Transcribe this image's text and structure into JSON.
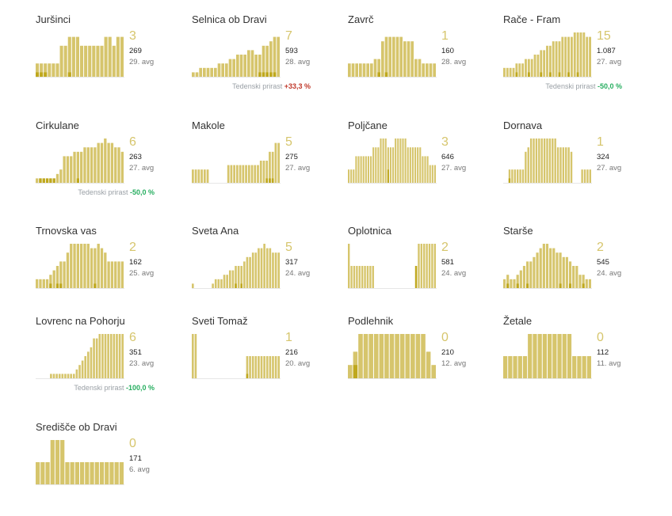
{
  "colors": {
    "bar": "#d6c56c",
    "bar_highlight": "#bfa81e",
    "axis": "#e6e6e6",
    "positive": "#c0392b",
    "negative": "#27ae60"
  },
  "growth_label": "Tedenski prirast",
  "municipalities": [
    {
      "name": "Juršinci",
      "new": "3",
      "total": "269",
      "avg": "29. avg",
      "growth": null,
      "chart_data": {
        "type": "bar",
        "values": [
          3,
          3,
          3,
          3,
          3,
          3,
          7,
          7,
          9,
          9,
          9,
          7,
          7,
          7,
          7,
          7,
          7,
          9,
          9,
          7,
          9,
          9
        ],
        "highlight": [
          1,
          1,
          1,
          0,
          0,
          0,
          0,
          0,
          1,
          0,
          0,
          0,
          0,
          0,
          0,
          0,
          0,
          0,
          0,
          0,
          0,
          0
        ]
      }
    },
    {
      "name": "Selnica ob Dravi",
      "new": "7",
      "total": "593",
      "avg": "28. avg",
      "growth": "+33,3 %",
      "growth_dir": "pos",
      "chart_data": {
        "type": "bar",
        "values": [
          1,
          1,
          2,
          2,
          2,
          2,
          2,
          3,
          3,
          3,
          4,
          4,
          5,
          5,
          5,
          6,
          6,
          5,
          5,
          7,
          7,
          8,
          9,
          9
        ],
        "highlight": [
          0,
          0,
          0,
          0,
          0,
          0,
          0,
          0,
          0,
          0,
          0,
          0,
          0,
          0,
          0,
          0,
          0,
          0,
          1,
          1,
          1,
          1,
          1,
          0
        ]
      }
    },
    {
      "name": "Zavrč",
      "new": "1",
      "total": "160",
      "avg": "28. avg",
      "growth": null,
      "chart_data": {
        "type": "bar",
        "values": [
          3,
          3,
          3,
          3,
          3,
          3,
          3,
          4,
          4,
          8,
          9,
          9,
          9,
          9,
          9,
          8,
          8,
          8,
          4,
          4,
          3,
          3,
          3,
          3
        ],
        "highlight": [
          0,
          0,
          0,
          0,
          0,
          0,
          0,
          0,
          1,
          0,
          1,
          0,
          0,
          0,
          0,
          0,
          0,
          0,
          0,
          0,
          0,
          0,
          0,
          0
        ]
      }
    },
    {
      "name": "Rače - Fram",
      "new": "15",
      "total": "1.087",
      "avg": "27. avg",
      "growth": "-50,0 %",
      "growth_dir": "neg",
      "chart_data": {
        "type": "bar",
        "values": [
          2,
          2,
          2,
          2,
          3,
          3,
          3,
          4,
          4,
          4,
          5,
          5,
          6,
          6,
          7,
          7,
          8,
          8,
          8,
          9,
          9,
          9,
          9,
          10,
          10,
          10,
          10,
          9,
          9
        ],
        "highlight": [
          0,
          0,
          0,
          0,
          1,
          0,
          0,
          0,
          1,
          0,
          0,
          0,
          1,
          0,
          0,
          1,
          0,
          0,
          1,
          0,
          0,
          1,
          0,
          0,
          1,
          0,
          0,
          0,
          0
        ]
      }
    },
    {
      "name": "Cirkulane",
      "new": "6",
      "total": "263",
      "avg": "27. avg",
      "growth": "-50,0 %",
      "growth_dir": "neg",
      "chart_data": {
        "type": "bar",
        "values": [
          1,
          1,
          1,
          1,
          1,
          1,
          2,
          3,
          6,
          6,
          6,
          7,
          7,
          7,
          8,
          8,
          8,
          8,
          9,
          9,
          10,
          9,
          9,
          8,
          8,
          7
        ],
        "highlight": [
          0,
          1,
          1,
          1,
          1,
          1,
          0,
          0,
          0,
          0,
          0,
          0,
          1,
          0,
          0,
          0,
          0,
          0,
          0,
          0,
          0,
          0,
          0,
          0,
          0,
          0
        ]
      }
    },
    {
      "name": "Makole",
      "new": "5",
      "total": "275",
      "avg": "27. avg",
      "growth": null,
      "chart_data": {
        "type": "bar",
        "values": [
          3,
          3,
          3,
          3,
          3,
          3,
          0,
          0,
          0,
          0,
          0,
          0,
          4,
          4,
          4,
          4,
          4,
          4,
          4,
          4,
          4,
          4,
          4,
          5,
          5,
          5,
          7,
          7,
          9,
          9
        ],
        "highlight": [
          0,
          0,
          0,
          0,
          0,
          0,
          0,
          0,
          0,
          0,
          0,
          0,
          0,
          0,
          0,
          0,
          0,
          0,
          0,
          0,
          0,
          0,
          0,
          0,
          0,
          1,
          1,
          1,
          0,
          0
        ]
      }
    },
    {
      "name": "Poljčane",
      "new": "3",
      "total": "646",
      "avg": "27. avg",
      "growth": null,
      "chart_data": {
        "type": "bar",
        "values": [
          3,
          3,
          3,
          6,
          6,
          6,
          6,
          6,
          6,
          6,
          8,
          8,
          8,
          10,
          10,
          10,
          8,
          8,
          8,
          10,
          10,
          10,
          10,
          10,
          8,
          8,
          8,
          8,
          8,
          8,
          6,
          6,
          6,
          4,
          4,
          4
        ],
        "highlight": [
          0,
          0,
          0,
          0,
          0,
          0,
          0,
          0,
          0,
          0,
          0,
          0,
          0,
          0,
          0,
          0,
          3,
          0,
          0,
          0,
          0,
          0,
          0,
          0,
          0,
          0,
          0,
          0,
          0,
          0,
          0,
          0,
          0,
          0,
          0,
          0
        ]
      }
    },
    {
      "name": "Dornava",
      "new": "1",
      "total": "324",
      "avg": "27. avg",
      "growth": null,
      "chart_data": {
        "type": "bar",
        "values": [
          0,
          0,
          3,
          3,
          3,
          3,
          3,
          3,
          7,
          8,
          10,
          10,
          10,
          10,
          10,
          10,
          10,
          10,
          10,
          10,
          8,
          8,
          8,
          8,
          8,
          7,
          0,
          0,
          0,
          3,
          3,
          3,
          3
        ],
        "highlight": [
          0,
          0,
          1,
          0,
          0,
          0,
          0,
          0,
          0,
          0,
          0,
          0,
          0,
          0,
          0,
          0,
          0,
          0,
          0,
          0,
          0,
          0,
          0,
          0,
          0,
          0,
          0,
          0,
          0,
          0,
          0,
          0,
          0
        ]
      }
    },
    {
      "name": "Trnovska vas",
      "new": "2",
      "total": "162",
      "avg": "25. avg",
      "growth": null,
      "chart_data": {
        "type": "bar",
        "values": [
          2,
          2,
          2,
          2,
          3,
          4,
          5,
          6,
          6,
          8,
          10,
          10,
          10,
          10,
          10,
          10,
          9,
          9,
          10,
          9,
          8,
          6,
          6,
          6,
          6,
          6
        ],
        "highlight": [
          0,
          0,
          0,
          0,
          1,
          0,
          1,
          1,
          0,
          0,
          0,
          0,
          0,
          0,
          0,
          0,
          0,
          1,
          0,
          0,
          0,
          0,
          0,
          0,
          0,
          0
        ]
      }
    },
    {
      "name": "Sveta Ana",
      "new": "5",
      "total": "317",
      "avg": "24. avg",
      "growth": null,
      "chart_data": {
        "type": "bar",
        "values": [
          1,
          0,
          0,
          0,
          0,
          0,
          0,
          1,
          2,
          2,
          2,
          3,
          3,
          4,
          4,
          5,
          5,
          5,
          6,
          7,
          7,
          8,
          8,
          9,
          9,
          10,
          9,
          9,
          8,
          8,
          8
        ],
        "highlight": [
          0,
          0,
          0,
          0,
          0,
          0,
          0,
          0,
          0,
          0,
          0,
          0,
          0,
          0,
          0,
          1,
          0,
          1,
          0,
          0,
          0,
          0,
          0,
          0,
          0,
          0,
          0,
          0,
          0,
          0,
          0
        ]
      }
    },
    {
      "name": "Oplotnica",
      "new": "2",
      "total": "581",
      "avg": "24. avg",
      "growth": null,
      "chart_data": {
        "type": "bar",
        "values": [
          10,
          5,
          5,
          5,
          5,
          5,
          5,
          5,
          5,
          5,
          0,
          0,
          0,
          0,
          0,
          0,
          0,
          0,
          0,
          0,
          0,
          0,
          0,
          0,
          0,
          5,
          10,
          10,
          10,
          10,
          10,
          10,
          10
        ],
        "highlight": [
          0,
          0,
          0,
          0,
          0,
          0,
          0,
          0,
          0,
          0,
          0,
          0,
          0,
          0,
          0,
          0,
          0,
          0,
          0,
          0,
          0,
          0,
          0,
          0,
          0,
          5,
          0,
          0,
          0,
          0,
          0,
          0,
          0
        ]
      }
    },
    {
      "name": "Starše",
      "new": "2",
      "total": "545",
      "avg": "24. avg",
      "growth": null,
      "chart_data": {
        "type": "bar",
        "values": [
          2,
          3,
          2,
          2,
          3,
          4,
          5,
          6,
          6,
          7,
          8,
          9,
          10,
          10,
          9,
          9,
          8,
          8,
          7,
          7,
          6,
          5,
          5,
          3,
          3,
          2,
          2
        ],
        "highlight": [
          0,
          1,
          0,
          0,
          1,
          0,
          0,
          1,
          0,
          0,
          0,
          0,
          0,
          0,
          0,
          0,
          0,
          1,
          0,
          0,
          1,
          0,
          0,
          0,
          1,
          0,
          0
        ]
      }
    },
    {
      "name": "Lovrenc na Pohorju",
      "new": "6",
      "total": "351",
      "avg": "23. avg",
      "growth": "-100,0 %",
      "growth_dir": "neg",
      "chart_data": {
        "type": "bar",
        "values": [
          0,
          0,
          0,
          0,
          0,
          1,
          1,
          1,
          1,
          1,
          1,
          1,
          1,
          1,
          2,
          3,
          4,
          5,
          6,
          7,
          9,
          9,
          10,
          10,
          10,
          10,
          10,
          10,
          10,
          10,
          10
        ],
        "highlight": [
          0,
          0,
          0,
          0,
          0,
          0,
          0,
          0,
          0,
          0,
          0,
          0,
          0,
          0,
          0,
          0,
          0,
          0,
          0,
          0,
          0,
          0,
          0,
          0,
          0,
          0,
          0,
          0,
          0,
          0,
          0
        ]
      }
    },
    {
      "name": "Sveti Tomaž",
      "new": "1",
      "total": "216",
      "avg": "20. avg",
      "growth": null,
      "chart_data": {
        "type": "bar",
        "values": [
          10,
          10,
          0,
          0,
          0,
          0,
          0,
          0,
          0,
          0,
          0,
          0,
          0,
          0,
          0,
          0,
          0,
          0,
          0,
          5,
          5,
          5,
          5,
          5,
          5,
          5,
          5,
          5,
          5,
          5,
          5
        ],
        "highlight": [
          0,
          0,
          0,
          0,
          0,
          0,
          0,
          0,
          0,
          0,
          0,
          0,
          0,
          0,
          0,
          0,
          0,
          0,
          0,
          1,
          0,
          0,
          0,
          0,
          0,
          0,
          0,
          0,
          0,
          0,
          0
        ]
      }
    },
    {
      "name": "Podlehnik",
      "new": "0",
      "total": "210",
      "avg": "12. avg",
      "growth": null,
      "chart_data": {
        "type": "bar",
        "values": [
          3,
          6,
          10,
          10,
          10,
          10,
          10,
          10,
          10,
          10,
          10,
          10,
          10,
          10,
          10,
          6,
          3
        ],
        "highlight": [
          0,
          3,
          0,
          0,
          0,
          0,
          0,
          0,
          0,
          0,
          0,
          0,
          0,
          0,
          0,
          0,
          0
        ]
      }
    },
    {
      "name": "Žetale",
      "new": "0",
      "total": "112",
      "avg": "11. avg",
      "growth": null,
      "chart_data": {
        "type": "bar",
        "values": [
          5,
          5,
          5,
          5,
          5,
          10,
          10,
          10,
          10,
          10,
          10,
          10,
          10,
          10,
          5,
          5,
          5,
          5
        ],
        "highlight": [
          0,
          0,
          0,
          0,
          0,
          0,
          0,
          0,
          0,
          0,
          0,
          0,
          0,
          0,
          0,
          0,
          0,
          0
        ]
      }
    },
    {
      "name": "Središče ob Dravi",
      "new": "0",
      "total": "171",
      "avg": "6. avg",
      "growth": null,
      "chart_data": {
        "type": "bar",
        "values": [
          5,
          5,
          5,
          10,
          10,
          10,
          5,
          5,
          5,
          5,
          5,
          5,
          5,
          5,
          5,
          5,
          5,
          5
        ],
        "highlight": [
          0,
          0,
          0,
          0,
          0,
          0,
          0,
          0,
          0,
          0,
          0,
          0,
          0,
          0,
          0,
          0,
          0,
          0
        ]
      }
    }
  ]
}
